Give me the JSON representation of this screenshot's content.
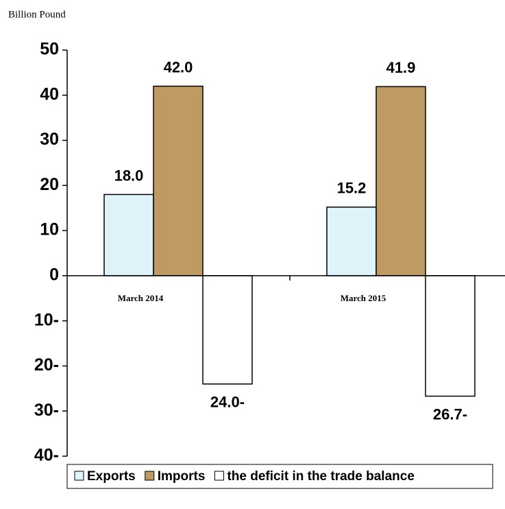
{
  "chart_data": {
    "type": "bar",
    "y_label": "Billion Pound",
    "categories": [
      "March 2014",
      "March 2015"
    ],
    "series": [
      {
        "name": "Exports",
        "color": "#dff3fb",
        "values": [
          18.0,
          15.2
        ],
        "value_labels": [
          "18.0",
          "15.2"
        ]
      },
      {
        "name": "Imports",
        "color": "#bf9a62",
        "values": [
          42.0,
          41.9
        ],
        "value_labels": [
          "42.0",
          "41.9"
        ]
      },
      {
        "name": "the deficit in the trade balance",
        "color": "#ffffff",
        "values": [
          -24.0,
          -26.7
        ],
        "value_labels": [
          "24.0-",
          "26.7-"
        ]
      }
    ],
    "ylim": [
      -40,
      50
    ],
    "yticks": [
      {
        "value": -40,
        "label": "40-"
      },
      {
        "value": -30,
        "label": "30-"
      },
      {
        "value": -20,
        "label": "20-"
      },
      {
        "value": -10,
        "label": "10-"
      },
      0,
      10,
      20,
      30,
      40,
      50
    ],
    "legend": "bottom"
  }
}
